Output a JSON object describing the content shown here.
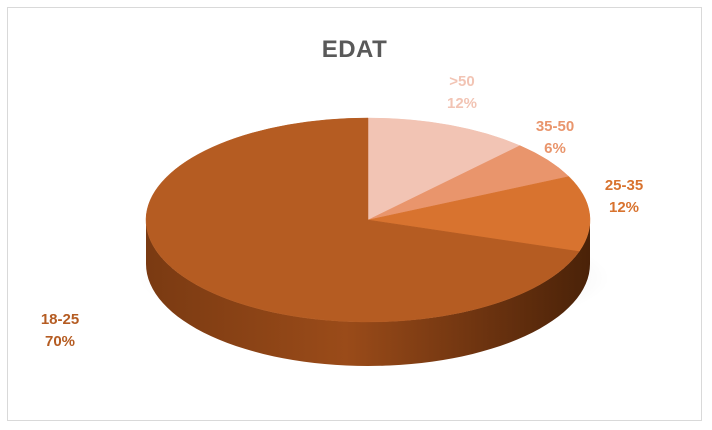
{
  "chart_data": {
    "type": "pie",
    "title": "EDAT",
    "categories": [
      ">50",
      "35-50",
      "25-35",
      "18-25"
    ],
    "values": [
      12,
      6,
      12,
      70
    ],
    "value_labels": [
      "12%",
      "6%",
      "12%",
      "70%"
    ],
    "colors": [
      "#f2c4b4",
      "#e9956c",
      "#d8732f",
      "#b55c22"
    ],
    "label_colors": [
      "#f2c4b4",
      "#e9956c",
      "#d8732f",
      "#b55c22"
    ],
    "style": "3d",
    "legend": "none"
  }
}
